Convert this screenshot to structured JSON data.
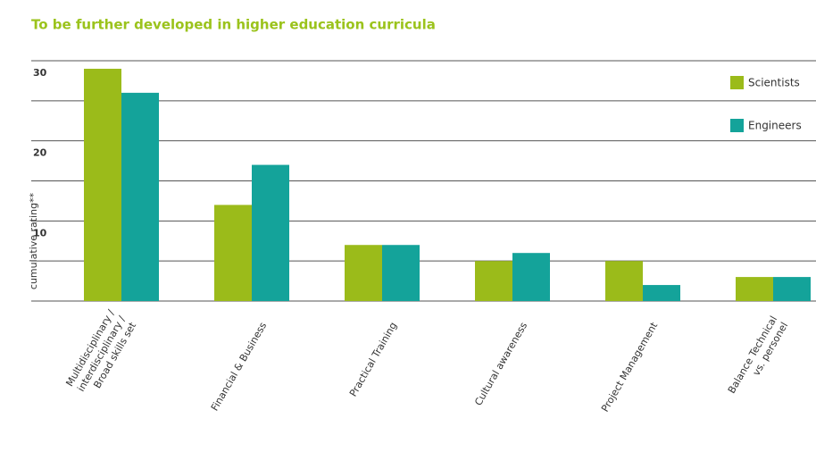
{
  "chart_data": {
    "type": "bar",
    "title": "To be further developed in higher education curricula",
    "y_label": "cumulative rating**",
    "categories": [
      [
        "Multidisciplinary /",
        "interdisciplinary /",
        "Broad skills set"
      ],
      [
        "Financial & Business"
      ],
      [
        "Practical Training"
      ],
      [
        "Cultural awareness"
      ],
      [
        "Project Management"
      ],
      [
        "Balance Technical",
        "vs. personel"
      ]
    ],
    "series": [
      {
        "name": "Scientists",
        "color": "#9bbb1a",
        "values": [
          29,
          12,
          7,
          5,
          5,
          3
        ]
      },
      {
        "name": "Engineers",
        "color": "#14a39a",
        "values": [
          26,
          17,
          7,
          6,
          2,
          3
        ]
      }
    ],
    "ylim": [
      0,
      30
    ],
    "yticks": [
      10,
      20,
      30
    ],
    "grid": true,
    "legend": "top-right"
  }
}
